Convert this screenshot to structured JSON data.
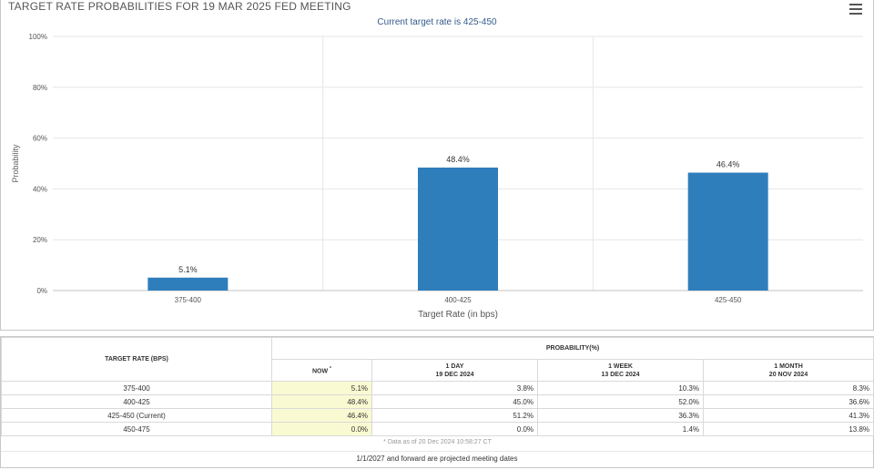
{
  "header": {
    "title": "TARGET RATE PROBABILITIES FOR 19 MAR 2025 FED MEETING",
    "subtitle": "Current target rate is 425-450",
    "menu_icon": "hamburger-icon"
  },
  "chart_data": {
    "type": "bar",
    "categories": [
      "375-400",
      "400-425",
      "425-450"
    ],
    "values": [
      5.1,
      48.4,
      46.4
    ],
    "data_labels": [
      "5.1%",
      "48.4%",
      "46.4%"
    ],
    "title": "TARGET RATE PROBABILITIES FOR 19 MAR 2025 FED MEETING",
    "subtitle": "Current target rate is 425-450",
    "xlabel": "Target Rate (in bps)",
    "ylabel": "Probability",
    "ylim": [
      0,
      100
    ],
    "yticks": [
      "0%",
      "20%",
      "40%",
      "60%",
      "80%",
      "100%"
    ],
    "grid": true,
    "bar_color": "#2f7ebc"
  },
  "table": {
    "target_rate_header": "TARGET RATE (BPS)",
    "probability_header": "PROBABILITY(%)",
    "columns": [
      {
        "label": "NOW",
        "mark": "*",
        "date": ""
      },
      {
        "label": "1 DAY",
        "date": "19 DEC 2024"
      },
      {
        "label": "1 WEEK",
        "date": "13 DEC 2024"
      },
      {
        "label": "1 MONTH",
        "date": "20 NOV 2024"
      }
    ],
    "rows": [
      {
        "rate": "375-400",
        "now": "5.1%",
        "day": "3.8%",
        "week": "10.3%",
        "month": "8.3%"
      },
      {
        "rate": "400-425",
        "now": "48.4%",
        "day": "45.0%",
        "week": "52.0%",
        "month": "36.6%"
      },
      {
        "rate": "425-450 (Current)",
        "now": "46.4%",
        "day": "51.2%",
        "week": "36.3%",
        "month": "41.3%"
      },
      {
        "rate": "450-475",
        "now": "0.0%",
        "day": "0.0%",
        "week": "1.4%",
        "month": "13.8%"
      }
    ],
    "data_note": "* Data as of 20 Dec 2024 10:58:27 CT",
    "footer_note": "1/1/2027 and forward are projected meeting dates"
  }
}
